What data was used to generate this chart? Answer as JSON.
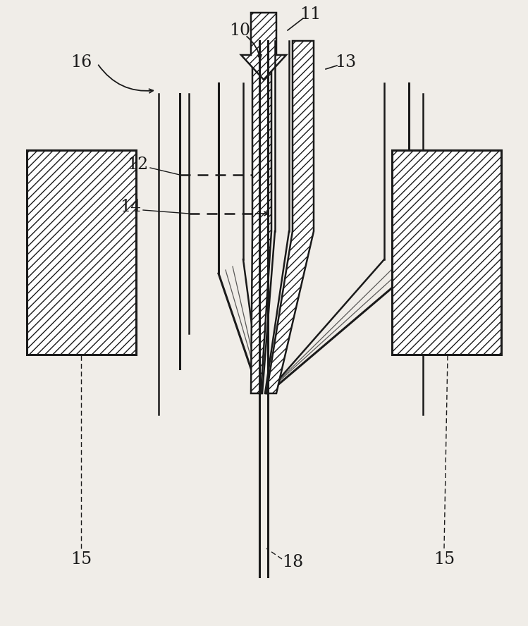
{
  "bg_color": "#f0ede8",
  "line_color": "#1a1a1a",
  "label_color": "#1a1a1a",
  "figsize": [
    7.49,
    8.88
  ],
  "dpi": 100,
  "lw": 1.8,
  "lw_thick": 2.2,
  "fs": 17
}
